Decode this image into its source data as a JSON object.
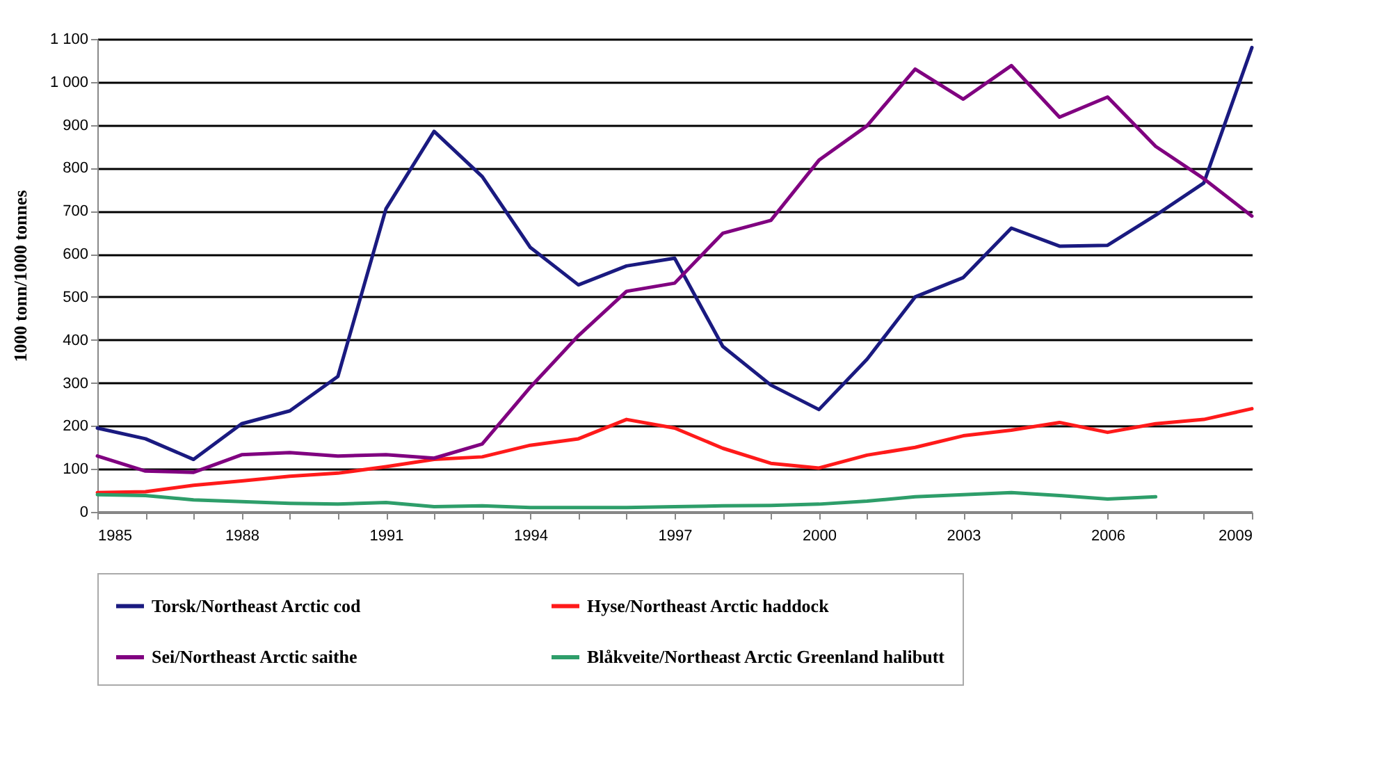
{
  "chart_data": {
    "type": "line",
    "ylabel": "1000 tonn/1000 tonnes",
    "x": [
      1985,
      1986,
      1987,
      1988,
      1989,
      1990,
      1991,
      1992,
      1993,
      1994,
      1995,
      1996,
      1997,
      1998,
      1999,
      2000,
      2001,
      2002,
      2003,
      2004,
      2005,
      2006,
      2007,
      2008,
      2009
    ],
    "series": [
      {
        "name": "Torsk/Northeast Arctic cod",
        "color": "#1a1a80",
        "values": [
          195,
          170,
          122,
          205,
          235,
          315,
          705,
          885,
          780,
          615,
          528,
          572,
          590,
          385,
          295,
          238,
          355,
          500,
          545,
          660,
          618,
          620,
          690,
          765,
          1080
        ]
      },
      {
        "name": "Hyse/Northeast Arctic haddock",
        "color": "#ff1a1a",
        "values": [
          45,
          47,
          62,
          72,
          83,
          90,
          105,
          122,
          128,
          155,
          170,
          215,
          195,
          148,
          113,
          102,
          132,
          150,
          177,
          190,
          208,
          185,
          205,
          215,
          240
        ]
      },
      {
        "name": "Sei/Northeast Arctic saithe",
        "color": "#800080",
        "values": [
          130,
          95,
          92,
          133,
          138,
          130,
          133,
          125,
          158,
          290,
          410,
          513,
          532,
          648,
          678,
          818,
          898,
          1030,
          960,
          1038,
          918,
          965,
          850,
          775,
          688
        ]
      },
      {
        "name": "Blåkveite/Northeast Arctic Greenland halibutt",
        "color": "#2e9e6a",
        "values": [
          40,
          38,
          28,
          24,
          20,
          18,
          22,
          12,
          14,
          10,
          10,
          10,
          12,
          14,
          15,
          18,
          25,
          35,
          40,
          45,
          38,
          30,
          35,
          null,
          null
        ]
      }
    ],
    "xlim": [
      1985,
      2009
    ],
    "xticks": [
      1985,
      {
        "value": 1986,
        "label": null
      },
      {
        "value": 1987,
        "label": null
      },
      1988,
      {
        "value": 1989,
        "label": null
      },
      {
        "value": 1990,
        "label": null
      },
      1991,
      {
        "value": 1992,
        "label": null
      },
      {
        "value": 1993,
        "label": null
      },
      1994,
      {
        "value": 1995,
        "label": null
      },
      {
        "value": 1996,
        "label": null
      },
      1997,
      {
        "value": 1998,
        "label": null
      },
      {
        "value": 1999,
        "label": null
      },
      2000,
      {
        "value": 2001,
        "label": null
      },
      {
        "value": 2002,
        "label": null
      },
      2003,
      {
        "value": 2004,
        "label": null
      },
      {
        "value": 2005,
        "label": null
      },
      2006,
      {
        "value": 2007,
        "label": null
      },
      {
        "value": 2008,
        "label": null
      },
      2009
    ],
    "ylim": [
      0,
      1100
    ],
    "yticks": [
      0,
      100,
      200,
      300,
      400,
      500,
      600,
      700,
      800,
      900,
      {
        "value": 1000,
        "label": "1 000"
      },
      {
        "value": 1100,
        "label": "1 100"
      }
    ],
    "grid": "y",
    "legend": "bottom",
    "marker": "none",
    "line_style": "solid"
  }
}
